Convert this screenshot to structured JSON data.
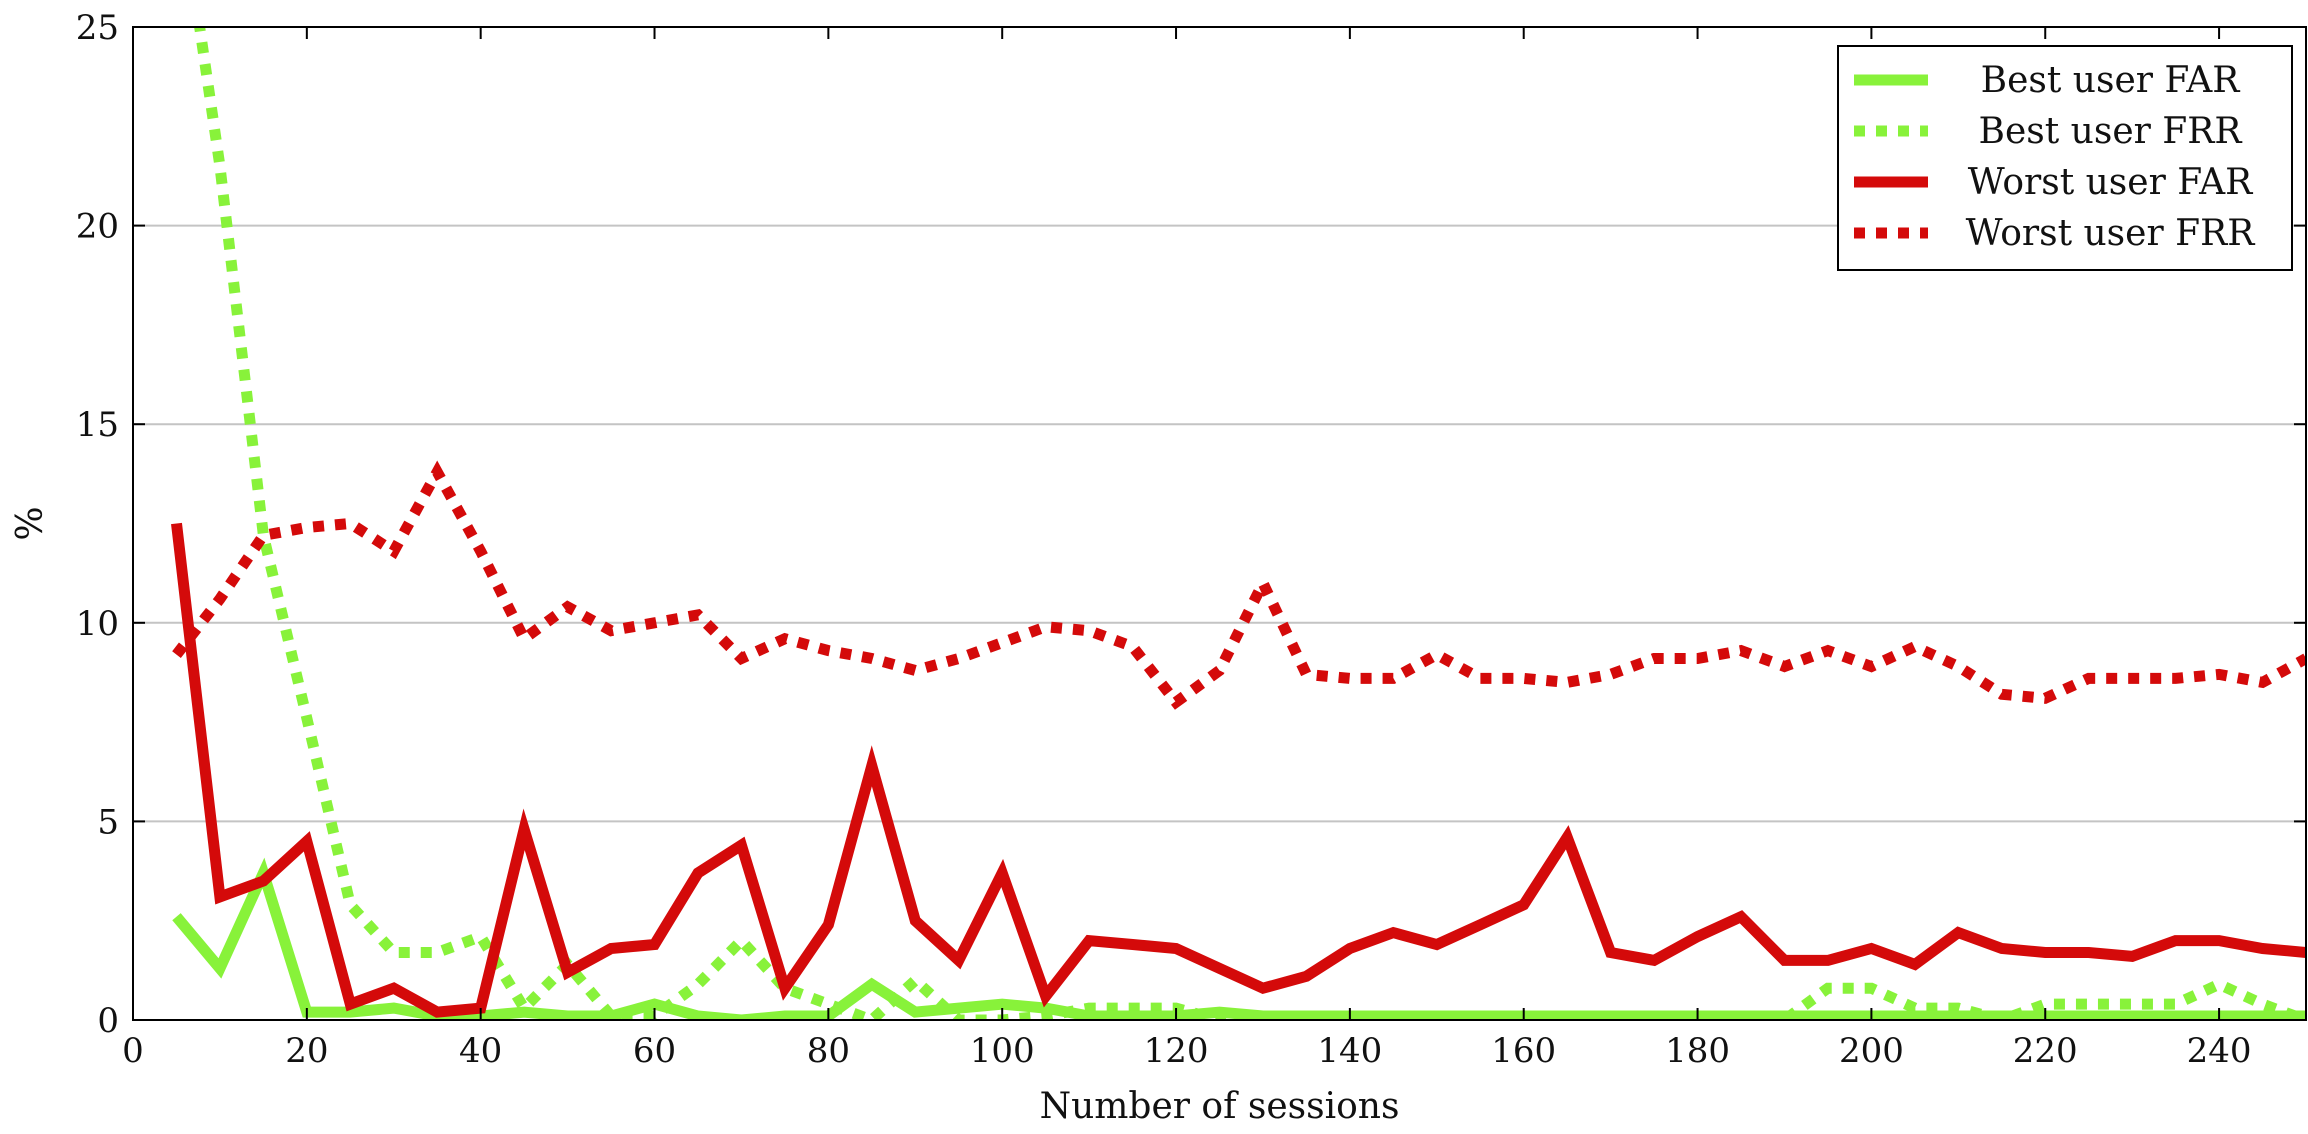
{
  "chart_data": {
    "type": "line",
    "title": "",
    "xlabel": "Number of sessions",
    "ylabel": "%",
    "xlim": [
      0,
      250
    ],
    "ylim": [
      0,
      25
    ],
    "x_ticks": [
      "0",
      "20",
      "40",
      "60",
      "80",
      "100",
      "120",
      "140",
      "160",
      "180",
      "200",
      "220",
      "240"
    ],
    "y_ticks": [
      "0",
      "5",
      "10",
      "15",
      "20",
      "25"
    ],
    "grid": "horizontal",
    "legend_position": "top-right",
    "x": [
      5,
      10,
      15,
      20,
      25,
      30,
      35,
      40,
      45,
      50,
      55,
      60,
      65,
      70,
      75,
      80,
      85,
      90,
      95,
      100,
      105,
      110,
      115,
      120,
      125,
      130,
      135,
      140,
      145,
      150,
      155,
      160,
      165,
      170,
      175,
      180,
      185,
      190,
      195,
      200,
      205,
      210,
      215,
      220,
      225,
      230,
      235,
      240,
      245,
      250
    ],
    "series": [
      {
        "name": "Best user FAR",
        "color": "#88f23a",
        "style": "solid",
        "values": [
          2.6,
          1.3,
          3.7,
          0.2,
          0.2,
          0.3,
          0.1,
          0.1,
          0.2,
          0.1,
          0.1,
          0.4,
          0.1,
          0.0,
          0.1,
          0.1,
          0.9,
          0.2,
          0.3,
          0.4,
          0.3,
          0.1,
          0.1,
          0.1,
          0.2,
          0.1,
          0.1,
          0.1,
          0.1,
          0.1,
          0.1,
          0.1,
          0.1,
          0.1,
          0.1,
          0.1,
          0.1,
          0.1,
          0.1,
          0.1,
          0.1,
          0.1,
          0.1,
          0.1,
          0.1,
          0.1,
          0.1,
          0.1,
          0.1,
          0.1
        ]
      },
      {
        "name": "Best user FRR",
        "color": "#88f23a",
        "style": "dotted",
        "values": [
          29.0,
          21.5,
          12.2,
          7.6,
          2.9,
          1.7,
          1.7,
          2.1,
          0.3,
          1.4,
          0.1,
          0.1,
          0.9,
          2.0,
          0.8,
          0.4,
          0.0,
          1.0,
          0.0,
          0.0,
          0.1,
          0.3,
          0.3,
          0.3,
          0.0,
          0.0,
          0.0,
          0.0,
          0.0,
          0.0,
          0.0,
          0.0,
          0.0,
          0.0,
          0.0,
          0.0,
          0.0,
          0.0,
          0.8,
          0.8,
          0.3,
          0.3,
          0.0,
          0.4,
          0.4,
          0.4,
          0.4,
          0.9,
          0.4,
          0.0
        ]
      },
      {
        "name": "Worst user FAR",
        "color": "#d40a0a",
        "style": "solid",
        "values": [
          12.5,
          3.1,
          3.5,
          4.5,
          0.4,
          0.8,
          0.2,
          0.3,
          4.8,
          1.2,
          1.8,
          1.9,
          3.7,
          4.4,
          0.8,
          2.4,
          6.4,
          2.5,
          1.5,
          3.7,
          0.6,
          2.0,
          1.9,
          1.8,
          1.3,
          0.8,
          1.1,
          1.8,
          2.2,
          1.9,
          2.4,
          2.9,
          4.6,
          1.7,
          1.5,
          2.1,
          2.6,
          1.5,
          1.5,
          1.8,
          1.4,
          2.2,
          1.8,
          1.7,
          1.7,
          1.6,
          2.0,
          2.0,
          1.8,
          1.7
        ]
      },
      {
        "name": "Worst user FRR",
        "color": "#d40a0a",
        "style": "dotted",
        "values": [
          9.2,
          10.6,
          12.2,
          12.4,
          12.5,
          11.8,
          13.8,
          11.8,
          9.6,
          10.4,
          9.8,
          10.0,
          10.2,
          9.1,
          9.6,
          9.3,
          9.1,
          8.8,
          9.1,
          9.5,
          9.9,
          9.8,
          9.4,
          8.0,
          8.8,
          11.0,
          8.7,
          8.6,
          8.6,
          9.2,
          8.6,
          8.6,
          8.5,
          8.7,
          9.1,
          9.1,
          9.3,
          8.9,
          9.3,
          8.9,
          9.4,
          8.9,
          8.2,
          8.1,
          8.6,
          8.6,
          8.6,
          8.7,
          8.5,
          9.1
        ]
      }
    ]
  }
}
